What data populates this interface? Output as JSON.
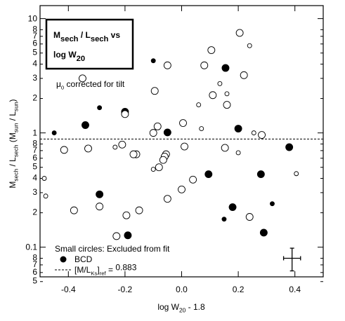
{
  "chart_data": {
    "type": "scatter",
    "title": [
      [
        {
          "text": "M"
        },
        {
          "text": "sech",
          "sub": true
        },
        {
          "text": " / L"
        },
        {
          "text": "sech",
          "sub": true
        },
        {
          "text": " vs"
        }
      ],
      [
        {
          "text": "log W"
        },
        {
          "text": "20",
          "sub": true
        }
      ]
    ],
    "annotation": [
      {
        "text": "μ"
      },
      {
        "text": "0",
        "sub": true
      },
      {
        "text": " corrected for tilt"
      }
    ],
    "xlabel": [
      {
        "text": "log W"
      },
      {
        "text": "20",
        "sub": true
      },
      {
        "text": " - 1.8"
      }
    ],
    "ylabel": [
      {
        "text": "M"
      },
      {
        "text": "sech",
        "sub": true
      },
      {
        "text": " / L"
      },
      {
        "text": "sech",
        "sub": true
      },
      {
        "text": "  (M"
      },
      {
        "text": "sun",
        "sub": true
      },
      {
        "text": " / L"
      },
      {
        "text": "sun",
        "sub": true
      },
      {
        "text": ")"
      }
    ],
    "legend": {
      "small_note": "Small circles:  Excluded from fit",
      "filled": "BCD",
      "line": [
        {
          "text": "[M/L"
        },
        {
          "text": "Ks",
          "sub": true
        },
        {
          "text": "]"
        },
        {
          "text": "ref",
          "sub": true
        },
        {
          "text": " = "
        }
      ]
    },
    "ref_line": 0.883,
    "xlim": [
      -0.5,
      0.5
    ],
    "ylim": [
      0.055,
      13
    ],
    "log_y": true,
    "xticks": [
      -0.4,
      -0.2,
      {
        "value": 0,
        "label": "0.0"
      },
      0.2,
      0.4
    ],
    "yticks": [
      {
        "value": 0.05,
        "label": "5"
      },
      {
        "value": 0.06,
        "label": "6"
      },
      {
        "value": 0.07,
        "label": "7"
      },
      {
        "value": 0.08,
        "label": "8"
      },
      0.1,
      {
        "value": 0.2,
        "label": "2"
      },
      {
        "value": 0.3,
        "label": "3"
      },
      {
        "value": 0.4,
        "label": "4"
      },
      {
        "value": 0.5,
        "label": "5"
      },
      {
        "value": 0.6,
        "label": "6"
      },
      {
        "value": 0.7,
        "label": "7"
      },
      {
        "value": 0.8,
        "label": "8"
      },
      1,
      {
        "value": 2,
        "label": "2"
      },
      {
        "value": 3,
        "label": "3"
      },
      {
        "value": 4,
        "label": "4"
      },
      {
        "value": 5,
        "label": "5"
      },
      {
        "value": 6,
        "label": "6"
      },
      {
        "value": 7,
        "label": "7"
      },
      {
        "value": 8,
        "label": "8"
      },
      10
    ],
    "error_bar": {
      "x": 0.39,
      "y": 0.08,
      "xerr": 0.03,
      "ylow": 0.062,
      "yhigh": 0.098
    },
    "series": [
      {
        "filled": true,
        "size": "large",
        "color": "#000000",
        "x": [
          0.155,
          -0.2,
          -0.34,
          -0.05,
          0.2,
          0.38,
          0.095,
          0.28,
          -0.29,
          0.18,
          0.29,
          -0.19
        ],
        "values": [
          3.7,
          1.53,
          1.17,
          1.01,
          1.09,
          0.75,
          0.435,
          0.435,
          0.29,
          0.224,
          0.134,
          0.127
        ]
      },
      {
        "filled": true,
        "size": "small",
        "color": "#000000",
        "x": [
          -0.1,
          -0.29,
          -0.45,
          0.32,
          0.15
        ],
        "values": [
          4.28,
          1.66,
          1.0,
          0.24,
          0.176
        ]
      },
      {
        "filled": false,
        "size": "large",
        "color": "#000000",
        "x": [
          0.205,
          0.105,
          -0.05,
          0.08,
          0.22,
          -0.35,
          -0.095,
          0.11,
          0.16,
          -0.2,
          0.005,
          -0.085,
          -0.1,
          0.283,
          -0.21,
          0.01,
          -0.415,
          -0.33,
          0.153,
          -0.16,
          -0.17,
          -0.055,
          -0.06,
          -0.065,
          -0.08,
          0.0,
          -0.05,
          -0.38,
          -0.29,
          -0.15,
          -0.195,
          0.24,
          -0.23,
          0.04
        ],
        "values": [
          7.5,
          5.3,
          3.9,
          3.9,
          3.2,
          3.0,
          2.33,
          2.14,
          1.76,
          1.46,
          1.22,
          1.14,
          1.0,
          0.96,
          0.79,
          0.76,
          0.71,
          0.73,
          0.74,
          0.65,
          0.65,
          0.65,
          0.62,
          0.58,
          0.5,
          0.32,
          0.265,
          0.21,
          0.227,
          0.21,
          0.19,
          0.184,
          0.125,
          0.39
        ]
      },
      {
        "filled": false,
        "size": "small",
        "color": "#000000",
        "x": [
          0.24,
          0.135,
          0.16,
          0.06,
          0.07,
          0.255,
          0.2,
          -0.235,
          -0.485,
          -0.48,
          -0.1,
          0.405
        ],
        "values": [
          5.8,
          2.7,
          2.2,
          1.76,
          1.09,
          1.0,
          0.67,
          0.75,
          0.4,
          0.28,
          0.48,
          0.44
        ]
      }
    ]
  }
}
